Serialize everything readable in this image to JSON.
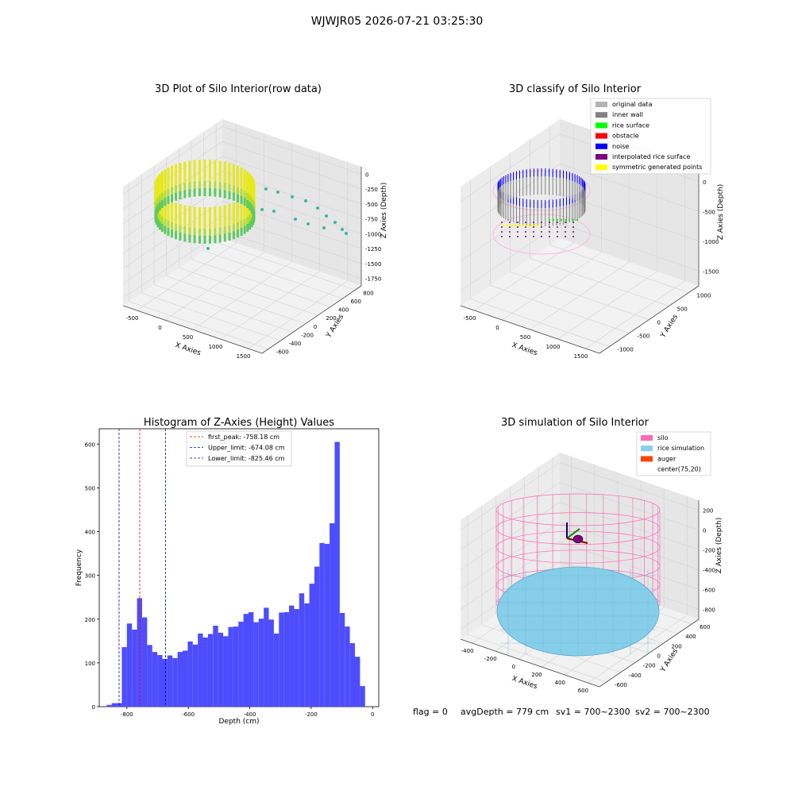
{
  "figure": {
    "suptitle": "WJWJR05 2026-07-21 03:25:30",
    "status_line": {
      "flag": "flag = 0",
      "avg_depth": "avgDepth = 779 cm",
      "sv1": "sv1 = 700~2300",
      "sv2": "sv2 = 700~2300"
    }
  },
  "colors": {
    "hist_bar": "#4d4dff",
    "first_peak_line": "#ff0000",
    "limit_line": "#0000cc",
    "silo_wire": "#ff69b4",
    "rice_surface": "#87ceeb",
    "auger": "#ff4500",
    "pane": "#f2f2f2",
    "grid": "#d6d6d6"
  },
  "chart_data": [
    {
      "type": "scatter",
      "projection": "3d",
      "title": "3D Plot of Silo Interior(row data)",
      "xlabel": "X Axies",
      "ylabel": "Y Axies",
      "zlabel": "Z Axies (Depth)",
      "x_ticks": [
        "-500",
        "0",
        "500",
        "1000",
        "1500"
      ],
      "y_ticks": [
        "-600",
        "-400",
        "-200",
        "0",
        "200",
        "400",
        "600",
        "800"
      ],
      "z_ticks": [
        "0",
        "-250",
        "-500",
        "-750",
        "-1000",
        "-1250",
        "-1500",
        "-1750"
      ],
      "xlim": [
        -600,
        1800
      ],
      "ylim": [
        -650,
        850
      ],
      "zlim": [
        -1800,
        0
      ],
      "colormap": "viridis",
      "grid": true
    },
    {
      "type": "scatter",
      "projection": "3d",
      "title": "3D classify of Silo Interior",
      "xlabel": "X Axies",
      "ylabel": "Y Axies",
      "zlabel": "Z Axies (Depth)",
      "x_ticks": [
        "-500",
        "0",
        "500",
        "1000",
        "1500"
      ],
      "y_ticks": [
        "-1000",
        "-500",
        "0",
        "500",
        "1000"
      ],
      "z_ticks": [
        "0",
        "-500",
        "-1000",
        "-1500"
      ],
      "xlim": [
        -600,
        1800
      ],
      "ylim": [
        -1000,
        1100
      ],
      "zlim": [
        -1700,
        0
      ],
      "legend_position": "top-right",
      "legend": [
        {
          "label": "original data",
          "color": "#b3b3b3"
        },
        {
          "label": "inner wall",
          "color": "#808080"
        },
        {
          "label": "rice surface",
          "color": "#00ff00"
        },
        {
          "label": "obstacle",
          "color": "#ff0000"
        },
        {
          "label": "noise",
          "color": "#0000ff"
        },
        {
          "label": "interpolated rice surface",
          "color": "#800080"
        },
        {
          "label": "symmetric generated points",
          "color": "#ffff00"
        }
      ],
      "grid": true
    },
    {
      "type": "bar",
      "title": "Histogram of Z-Axies (Height) Values",
      "xlabel": "Depth (cm)",
      "ylabel": "Frequency",
      "x_ticks": [
        "-800",
        "-600",
        "-400",
        "-200",
        "0"
      ],
      "y_ticks": [
        "0",
        "100",
        "200",
        "300",
        "400",
        "500",
        "600"
      ],
      "xlim": [
        -890,
        20
      ],
      "ylim": [
        0,
        635
      ],
      "bin_start": -866,
      "bin_width": 16.5,
      "values": [
        4,
        8,
        8,
        136,
        190,
        176,
        248,
        204,
        141,
        125,
        118,
        109,
        117,
        111,
        125,
        128,
        149,
        142,
        167,
        158,
        166,
        185,
        169,
        161,
        182,
        183,
        194,
        212,
        216,
        193,
        201,
        226,
        199,
        167,
        215,
        216,
        231,
        223,
        259,
        236,
        281,
        320,
        374,
        372,
        419,
        605,
        214,
        183,
        145,
        114,
        47
      ],
      "vlines": [
        {
          "label": "first_peak: -758.18 cm",
          "x": -758.18,
          "color": "#ff0000"
        },
        {
          "label": "Upper_limit: -674.08 cm",
          "x": -674.08,
          "color": "#0000cc"
        },
        {
          "label": "Lower_limit: -825.46 cm",
          "x": -825.46,
          "color": "#0000cc"
        }
      ],
      "legend_position": "top-center",
      "grid": false
    },
    {
      "type": "surface",
      "projection": "3d",
      "title": "3D simulation of Silo Interior",
      "xlabel": "X Axies",
      "ylabel": "Y Axies",
      "zlabel": "Z Axies (Depth)",
      "x_ticks": [
        "-400",
        "-200",
        "0",
        "200",
        "400",
        "600"
      ],
      "y_ticks": [
        "-600",
        "-400",
        "-200",
        "0",
        "200",
        "400",
        "600"
      ],
      "z_ticks": [
        "200",
        "0",
        "-200",
        "-400",
        "-600",
        "-800"
      ],
      "xlim": [
        -500,
        700
      ],
      "ylim": [
        -650,
        650
      ],
      "zlim": [
        -950,
        300
      ],
      "legend_position": "top-right",
      "legend": [
        {
          "label": "silo",
          "color": "#ff69b4"
        },
        {
          "label": "rice simulation",
          "color": "#87ceeb"
        },
        {
          "label": "auger",
          "color": "#ff4500"
        },
        {
          "label": "center(75,20)",
          "color": ""
        }
      ],
      "grid": true
    }
  ]
}
